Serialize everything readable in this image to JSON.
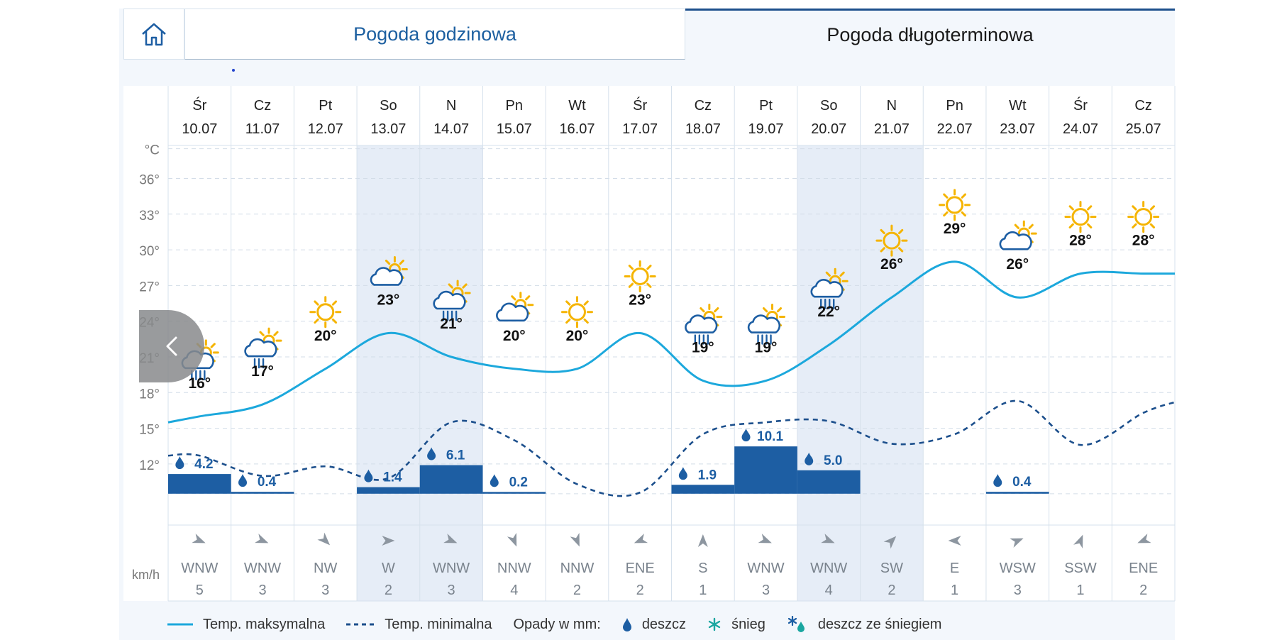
{
  "tabs": {
    "home_icon": "home-icon",
    "hourly": "Pogoda godzinowa",
    "longterm": "Pogoda długoterminowa"
  },
  "colors": {
    "max_line": "#1ca8dc",
    "min_line": "#1c4f8c",
    "bar": "#1d5ea3",
    "weekend": "#e6edf7",
    "grid": "#d3dde8",
    "sun": "#f5b400",
    "cloud": "#1d5ea3"
  },
  "nav": {
    "prev_icon": "chevron-left-icon"
  },
  "chart_data": {
    "type": "line",
    "title": "Pogoda długoterminowa",
    "temp_unit": "°C",
    "wind_unit": "km/h",
    "y_ticks": [
      36,
      33,
      30,
      27,
      24,
      21,
      18,
      15,
      12
    ],
    "y_tick_suffix": "°",
    "ylim": [
      10,
      38
    ],
    "days": [
      {
        "day": "Śr",
        "date": "10.07",
        "weekend": false,
        "icon": "sun-cloud-rain",
        "tmax": 16,
        "tmax_label": "16°",
        "tmin": 12.7,
        "precip": 4.2,
        "precip_label": "4.2",
        "wind_dir": "WNW",
        "wind_deg": 292,
        "wind_speed": "5"
      },
      {
        "day": "Cz",
        "date": "11.07",
        "weekend": false,
        "icon": "sun-cloud-showers",
        "tmax": 17,
        "tmax_label": "17°",
        "tmin": 11.0,
        "precip": 0.4,
        "precip_label": "0.4",
        "wind_dir": "WNW",
        "wind_deg": 292,
        "wind_speed": "3"
      },
      {
        "day": "Pt",
        "date": "12.07",
        "weekend": false,
        "icon": "sun",
        "tmax": 20,
        "tmax_label": "20°",
        "tmin": 11.8,
        "precip": 0,
        "precip_label": "",
        "wind_dir": "NW",
        "wind_deg": 315,
        "wind_speed": "3"
      },
      {
        "day": "So",
        "date": "13.07",
        "weekend": true,
        "icon": "sun-cloud",
        "tmax": 23,
        "tmax_label": "23°",
        "tmin": 10.8,
        "precip": 1.4,
        "precip_label": "1.4",
        "wind_dir": "W",
        "wind_deg": 270,
        "wind_speed": "2"
      },
      {
        "day": "N",
        "date": "14.07",
        "weekend": true,
        "icon": "sun-cloud-rain",
        "tmax": 21,
        "tmax_label": "21°",
        "tmin": 15.5,
        "precip": 6.1,
        "precip_label": "6.1",
        "wind_dir": "WNW",
        "wind_deg": 292,
        "wind_speed": "3"
      },
      {
        "day": "Pn",
        "date": "15.07",
        "weekend": false,
        "icon": "sun-cloud",
        "tmax": 20,
        "tmax_label": "20°",
        "tmin": 14.0,
        "precip": 0.2,
        "precip_label": "0.2",
        "wind_dir": "NNW",
        "wind_deg": 338,
        "wind_speed": "4"
      },
      {
        "day": "Wt",
        "date": "16.07",
        "weekend": false,
        "icon": "sun",
        "tmax": 20,
        "tmax_label": "20°",
        "tmin": 10.3,
        "precip": 0,
        "precip_label": "",
        "wind_dir": "NNW",
        "wind_deg": 338,
        "wind_speed": "2"
      },
      {
        "day": "Śr",
        "date": "17.07",
        "weekend": false,
        "icon": "sun",
        "tmax": 23,
        "tmax_label": "23°",
        "tmin": 9.6,
        "precip": 0,
        "precip_label": "",
        "wind_dir": "ENE",
        "wind_deg": 68,
        "wind_speed": "2"
      },
      {
        "day": "Cz",
        "date": "18.07",
        "weekend": false,
        "icon": "sun-cloud-rain",
        "tmax": 19,
        "tmax_label": "19°",
        "tmin": 14.5,
        "precip": 1.9,
        "precip_label": "1.9",
        "wind_dir": "S",
        "wind_deg": 180,
        "wind_speed": "1"
      },
      {
        "day": "Pt",
        "date": "19.07",
        "weekend": false,
        "icon": "sun-cloud-storm",
        "tmax": 19,
        "tmax_label": "19°",
        "tmin": 15.5,
        "precip": 10.1,
        "precip_label": "10.1",
        "wind_dir": "WNW",
        "wind_deg": 292,
        "wind_speed": "3"
      },
      {
        "day": "So",
        "date": "20.07",
        "weekend": true,
        "icon": "sun-cloud-rain",
        "tmax": 22,
        "tmax_label": "22°",
        "tmin": 15.6,
        "precip": 5.0,
        "precip_label": "5.0",
        "wind_dir": "WNW",
        "wind_deg": 292,
        "wind_speed": "4"
      },
      {
        "day": "N",
        "date": "21.07",
        "weekend": true,
        "icon": "sun",
        "tmax": 26,
        "tmax_label": "26°",
        "tmin": 13.7,
        "precip": 0,
        "precip_label": "",
        "wind_dir": "SW",
        "wind_deg": 225,
        "wind_speed": "2"
      },
      {
        "day": "Pn",
        "date": "22.07",
        "weekend": false,
        "icon": "sun",
        "tmax": 29,
        "tmax_label": "29°",
        "tmin": 14.5,
        "precip": 0,
        "precip_label": "",
        "wind_dir": "E",
        "wind_deg": 90,
        "wind_speed": "1"
      },
      {
        "day": "Wt",
        "date": "23.07",
        "weekend": false,
        "icon": "sun-cloud",
        "tmax": 26,
        "tmax_label": "26°",
        "tmin": 17.3,
        "precip": 0.4,
        "precip_label": "0.4",
        "wind_dir": "WSW",
        "wind_deg": 248,
        "wind_speed": "3"
      },
      {
        "day": "Śr",
        "date": "24.07",
        "weekend": false,
        "icon": "sun",
        "tmax": 28,
        "tmax_label": "28°",
        "tmin": 13.6,
        "precip": 0,
        "precip_label": "",
        "wind_dir": "SSW",
        "wind_deg": 202,
        "wind_speed": "1"
      },
      {
        "day": "Cz",
        "date": "25.07",
        "weekend": false,
        "icon": "sun",
        "tmax": 28,
        "tmax_label": "28°",
        "tmin": 16.3,
        "precip": 0,
        "precip_label": "",
        "wind_dir": "ENE",
        "wind_deg": 68,
        "wind_speed": "2"
      }
    ],
    "max_line_end": 28.0,
    "min_line_end": 17.2
  },
  "legend": {
    "max_temp": "Temp. maksymalna",
    "min_temp": "Temp. minimalna",
    "precip_title": "Opady w mm:",
    "rain": "deszcz",
    "snow": "śnieg",
    "sleet": "deszcz ze śniegiem"
  }
}
